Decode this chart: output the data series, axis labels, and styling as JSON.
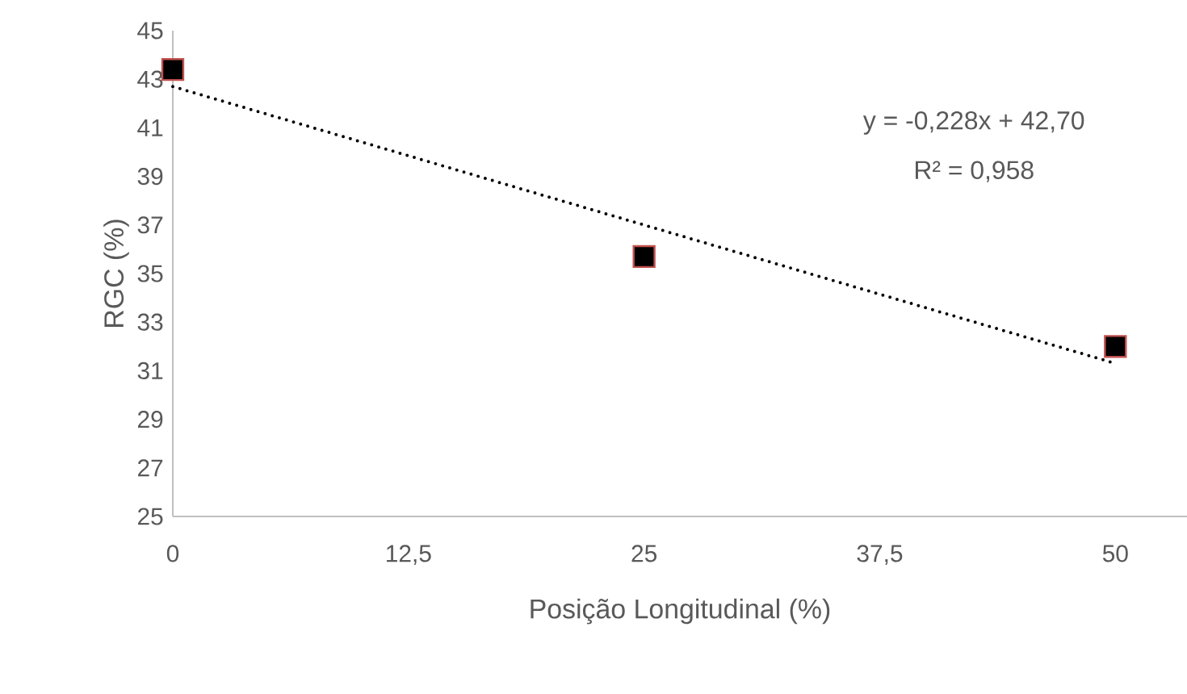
{
  "chart_data": {
    "type": "scatter",
    "xlabel": "Posição Longitudinal (%)",
    "ylabel": "RGC (%)",
    "x": [
      0,
      25,
      50
    ],
    "series": [
      {
        "color": "#000000",
        "marker": "square",
        "values": [
          43.4,
          35.7,
          32.0
        ]
      },
      {
        "type": "line",
        "color": "#000000",
        "line_style": "dotted",
        "marker": "none",
        "x": [
          0,
          50
        ],
        "values": [
          42.7,
          31.3
        ]
      }
    ],
    "annotations": [
      "y = -0,228x + 42,70",
      "R² = 0,958"
    ],
    "xlim": [
      0,
      53.8
    ],
    "ylim": [
      25,
      45
    ],
    "xticks": [
      0,
      {
        "value": 12.5,
        "label": "12,5"
      },
      25,
      {
        "value": 37.5,
        "label": "37,5"
      },
      50
    ],
    "yticks": [
      25,
      27,
      29,
      31,
      33,
      35,
      37,
      39,
      41,
      43,
      45
    ],
    "grid": false
  }
}
